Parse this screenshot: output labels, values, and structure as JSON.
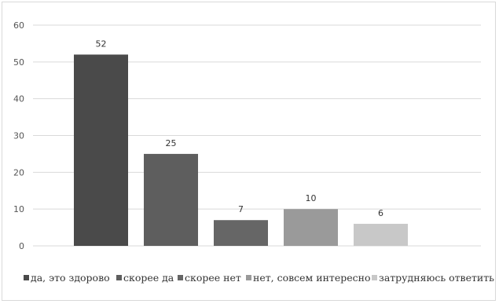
{
  "chart_data": {
    "type": "bar",
    "categories": [
      "да, это здорово",
      "скорее да",
      "скорее нет",
      "нет, совсем интересно",
      "затрудняюсь ответить"
    ],
    "values": [
      52,
      25,
      7,
      10,
      6
    ],
    "colors": [
      "#4a4a4a",
      "#5e5e5e",
      "#666666",
      "#9a9a9a",
      "#c8c8c8"
    ],
    "yticks": [
      0,
      10,
      20,
      30,
      40,
      50,
      60
    ],
    "ylim": [
      0,
      60
    ],
    "grid": true,
    "legend_position": "bottom",
    "legend": [
      {
        "label": "да, это здорово",
        "color": "#4a4a4a"
      },
      {
        "label": "скорее да",
        "color": "#5e5e5e"
      },
      {
        "label": "скорее нет",
        "color": "#666666"
      },
      {
        "label": "нет, совсем интересно",
        "color": "#9a9a9a"
      },
      {
        "label": "затрудняюсь ответить",
        "color": "#c8c8c8"
      }
    ]
  }
}
